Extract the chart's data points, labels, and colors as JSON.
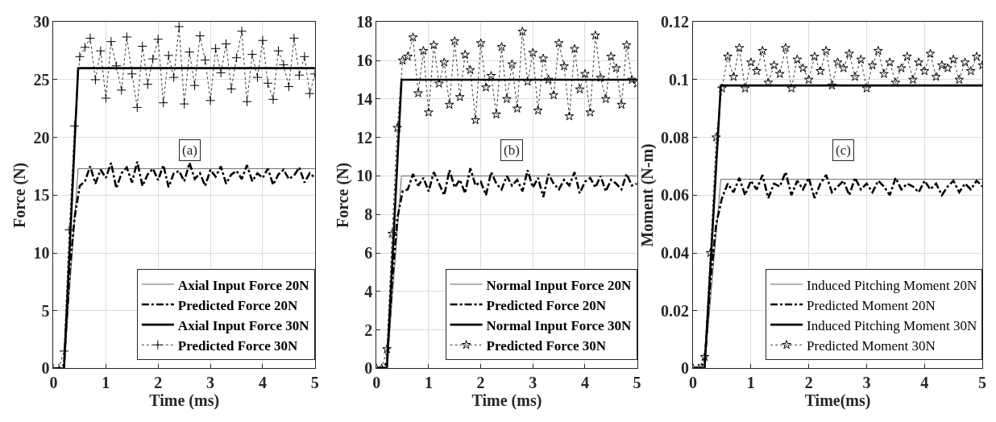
{
  "chart_data": [
    {
      "type": "line",
      "xlabel": "Time (ms)",
      "ylabel": "Force (N)",
      "annotations": [
        "(a)"
      ],
      "xlim": [
        0,
        5
      ],
      "xticks": [
        0,
        1,
        2,
        3,
        4,
        5
      ],
      "ylim": [
        0,
        30
      ],
      "yticks": [
        0,
        5,
        10,
        15,
        20,
        25,
        30
      ],
      "grid": true,
      "legend": "bottom right",
      "x": [
        0,
        0.1,
        0.2,
        0.3,
        0.4,
        0.5,
        0.6,
        0.7,
        0.8,
        0.9,
        1.0,
        1.1,
        1.2,
        1.3,
        1.4,
        1.5,
        1.6,
        1.7,
        1.8,
        1.9,
        2.0,
        2.1,
        2.2,
        2.3,
        2.4,
        2.5,
        2.6,
        2.7,
        2.8,
        2.9,
        3.0,
        3.1,
        3.2,
        3.3,
        3.4,
        3.5,
        3.6,
        3.7,
        3.8,
        3.9,
        4.0,
        4.1,
        4.2,
        4.3,
        4.4,
        4.5,
        4.6,
        4.7,
        4.8,
        4.9,
        5.0
      ],
      "series": [
        {
          "name": "Axial Input Force 20N",
          "color": "#666666",
          "line_style": "solid",
          "x": [
            0,
            0.2,
            0.47,
            5
          ],
          "values": [
            0,
            0,
            17.3,
            17.3
          ]
        },
        {
          "name": "Predicted Force 20N",
          "color": "#000000",
          "line_style": "dashed",
          "values": [
            0,
            0,
            0.3,
            8,
            13,
            15.8,
            16.2,
            17.5,
            16.0,
            17.2,
            16.5,
            17.8,
            15.6,
            16.9,
            17.4,
            16.1,
            17.9,
            15.8,
            16.8,
            17.3,
            16.3,
            17.6,
            15.7,
            16.9,
            17.1,
            16.2,
            17.8,
            16.4,
            16.9,
            15.8,
            17.2,
            16.6,
            17.5,
            16.0,
            16.8,
            17.1,
            16.4,
            17.6,
            16.2,
            16.9,
            16.5,
            17.3,
            15.9,
            16.8,
            17.2,
            16.4,
            16.7,
            17.4,
            16.1,
            16.9,
            16.5
          ]
        },
        {
          "name": "Axial Input Force 30N",
          "color": "#000000",
          "line_style": "solid",
          "x": [
            0,
            0.2,
            0.47,
            5
          ],
          "values": [
            0,
            0,
            26,
            26
          ]
        },
        {
          "name": "Predicted Force 30N",
          "color": "#000000",
          "line_style": "dotted",
          "marker": "cross",
          "values": [
            0,
            0,
            1.5,
            12,
            21,
            27,
            27.8,
            28.6,
            25.0,
            27.5,
            23.4,
            28.3,
            26.2,
            24.1,
            28.7,
            25.5,
            22.6,
            27.9,
            24.6,
            26.8,
            28.5,
            23.0,
            27.1,
            25.2,
            29.6,
            22.9,
            27.4,
            24.5,
            28.8,
            26.7,
            23.2,
            27.7,
            25.6,
            28.1,
            24.2,
            26.9,
            29.2,
            23.1,
            27.2,
            25.2,
            28.4,
            24.7,
            23.3,
            27.5,
            26.3,
            24.4,
            28.6,
            25.4,
            27.0,
            23.8,
            25.5
          ]
        }
      ]
    },
    {
      "type": "line",
      "xlabel": "Time (ms)",
      "ylabel": "Force (N)",
      "annotations": [
        "(b)"
      ],
      "xlim": [
        0,
        5
      ],
      "xticks": [
        0,
        1,
        2,
        3,
        4,
        5
      ],
      "ylim": [
        0,
        18
      ],
      "yticks": [
        0,
        2,
        4,
        6,
        8,
        10,
        12,
        14,
        16,
        18
      ],
      "grid": true,
      "legend": "bottom right",
      "x": [
        0,
        0.1,
        0.2,
        0.3,
        0.4,
        0.5,
        0.6,
        0.7,
        0.8,
        0.9,
        1.0,
        1.1,
        1.2,
        1.3,
        1.4,
        1.5,
        1.6,
        1.7,
        1.8,
        1.9,
        2.0,
        2.1,
        2.2,
        2.3,
        2.4,
        2.5,
        2.6,
        2.7,
        2.8,
        2.9,
        3.0,
        3.1,
        3.2,
        3.3,
        3.4,
        3.5,
        3.6,
        3.7,
        3.8,
        3.9,
        4.0,
        4.1,
        4.2,
        4.3,
        4.4,
        4.5,
        4.6,
        4.7,
        4.8,
        4.9,
        5.0
      ],
      "series": [
        {
          "name": "Normal Input Force 20N",
          "color": "#666666",
          "line_style": "solid",
          "x": [
            0,
            0.2,
            0.48,
            5
          ],
          "values": [
            0,
            0,
            10,
            10
          ]
        },
        {
          "name": "Predicted Force 20N",
          "color": "#000000",
          "line_style": "dashed",
          "values": [
            0,
            0,
            0.3,
            4.5,
            7.8,
            9.2,
            9.3,
            10.1,
            9.5,
            9.9,
            9.2,
            10.2,
            9.6,
            9.0,
            10.3,
            9.4,
            9.8,
            9.1,
            10.4,
            9.5,
            9.7,
            9.0,
            10.2,
            9.6,
            9.3,
            10.0,
            9.5,
            9.8,
            9.2,
            10.3,
            9.4,
            9.9,
            8.9,
            10.1,
            9.6,
            9.3,
            9.8,
            9.5,
            10.2,
            9.1,
            9.7,
            9.9,
            9.4,
            10.0,
            9.2,
            9.8,
            9.6,
            9.3,
            10.1,
            9.5,
            9.6
          ]
        },
        {
          "name": "Normal Input Force 30N",
          "color": "#000000",
          "line_style": "solid",
          "x": [
            0,
            0.2,
            0.48,
            5
          ],
          "values": [
            0,
            0,
            15,
            15
          ]
        },
        {
          "name": "Predicted Force 30N",
          "color": "#000000",
          "line_style": "dotted",
          "marker": "star",
          "values": [
            0,
            0,
            1.0,
            7.0,
            12.5,
            16.0,
            16.2,
            17.2,
            14.3,
            16.5,
            13.3,
            16.8,
            14.8,
            15.9,
            13.7,
            17.0,
            14.1,
            16.3,
            15.5,
            12.9,
            16.9,
            14.6,
            15.2,
            13.2,
            16.7,
            14.0,
            15.8,
            13.5,
            17.5,
            14.9,
            16.4,
            13.4,
            16.1,
            15.0,
            14.2,
            16.9,
            15.7,
            13.1,
            16.6,
            14.5,
            15.3,
            13.3,
            17.3,
            15.1,
            14.0,
            16.2,
            15.6,
            13.7,
            16.8,
            15.0,
            14.8
          ]
        }
      ]
    },
    {
      "type": "line",
      "xlabel": "Time(ms)",
      "ylabel": "Moment (N-m)",
      "annotations": [
        "(c)"
      ],
      "xlim": [
        0,
        5
      ],
      "xticks": [
        0,
        1,
        2,
        3,
        4,
        5
      ],
      "ylim": [
        0,
        0.12
      ],
      "yticks": [
        0,
        0.02,
        0.04,
        0.06,
        0.08,
        0.1,
        0.12
      ],
      "grid": true,
      "legend": "bottom right",
      "x": [
        0,
        0.1,
        0.2,
        0.3,
        0.4,
        0.5,
        0.6,
        0.7,
        0.8,
        0.9,
        1.0,
        1.1,
        1.2,
        1.3,
        1.4,
        1.5,
        1.6,
        1.7,
        1.8,
        1.9,
        2.0,
        2.1,
        2.2,
        2.3,
        2.4,
        2.5,
        2.6,
        2.7,
        2.8,
        2.9,
        3.0,
        3.1,
        3.2,
        3.3,
        3.4,
        3.5,
        3.6,
        3.7,
        3.8,
        3.9,
        4.0,
        4.1,
        4.2,
        4.3,
        4.4,
        4.5,
        4.6,
        4.7,
        4.8,
        4.9,
        5.0
      ],
      "series": [
        {
          "name": "Induced Pitching Moment 20N",
          "color": "#666666",
          "line_style": "solid",
          "x": [
            0,
            0.2,
            0.48,
            5
          ],
          "values": [
            0,
            0,
            0.0655,
            0.0655
          ]
        },
        {
          "name": "Predicted Moment 20N",
          "color": "#000000",
          "line_style": "dashed",
          "values": [
            0,
            0,
            0.002,
            0.03,
            0.05,
            0.059,
            0.064,
            0.061,
            0.066,
            0.06,
            0.065,
            0.062,
            0.067,
            0.059,
            0.064,
            0.063,
            0.068,
            0.06,
            0.065,
            0.062,
            0.066,
            0.059,
            0.064,
            0.067,
            0.061,
            0.063,
            0.065,
            0.06,
            0.066,
            0.062,
            0.064,
            0.061,
            0.065,
            0.063,
            0.06,
            0.066,
            0.062,
            0.064,
            0.063,
            0.061,
            0.065,
            0.062,
            0.064,
            0.06,
            0.063,
            0.065,
            0.061,
            0.064,
            0.062,
            0.065,
            0.063
          ]
        },
        {
          "name": "Induced Pitching Moment 30N",
          "color": "#000000",
          "line_style": "solid",
          "x": [
            0,
            0.2,
            0.48,
            5
          ],
          "values": [
            0,
            0,
            0.098,
            0.098
          ]
        },
        {
          "name": "Predicted Moment 30N",
          "color": "#000000",
          "line_style": "dotted",
          "marker": "star",
          "values": [
            0,
            0,
            0.004,
            0.04,
            0.08,
            0.097,
            0.108,
            0.101,
            0.111,
            0.097,
            0.106,
            0.103,
            0.11,
            0.099,
            0.105,
            0.102,
            0.111,
            0.097,
            0.107,
            0.104,
            0.1,
            0.108,
            0.103,
            0.11,
            0.098,
            0.106,
            0.104,
            0.109,
            0.101,
            0.107,
            0.097,
            0.105,
            0.11,
            0.102,
            0.106,
            0.099,
            0.104,
            0.108,
            0.1,
            0.106,
            0.103,
            0.109,
            0.101,
            0.105,
            0.104,
            0.107,
            0.1,
            0.106,
            0.103,
            0.108,
            0.105
          ]
        }
      ]
    }
  ]
}
